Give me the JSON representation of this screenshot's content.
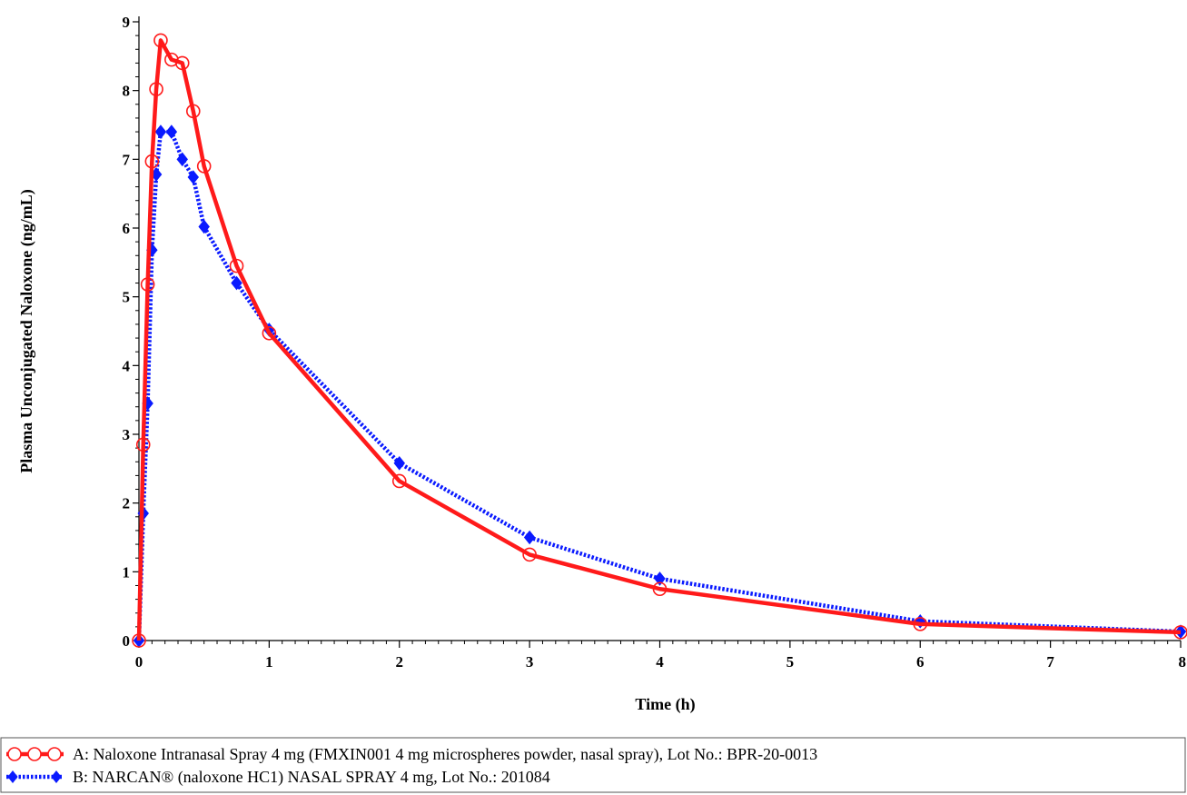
{
  "chart_data": {
    "type": "line",
    "title": "",
    "xlabel": "Time (h)",
    "ylabel": "Plasma Unconjugated Naloxone (ng/mL)",
    "xlim": [
      0,
      8
    ],
    "ylim": [
      0,
      9
    ],
    "x_ticks": [
      "0",
      "1",
      "2",
      "3",
      "4",
      "5",
      "6",
      "7",
      "8"
    ],
    "y_ticks": [
      "0",
      "1",
      "2",
      "3",
      "4",
      "5",
      "6",
      "7",
      "8",
      "9"
    ],
    "grid": false,
    "legend_position": "bottom",
    "series": [
      {
        "name": "A: Naloxone Intranasal Spray 4 mg (FMXIN001 4 mg microspheres powder, nasal spray), Lot No.: BPR-20-0013",
        "color": "#ff1a1a",
        "marker": "open-circle",
        "line_style": "solid",
        "x": [
          0,
          0.033,
          0.067,
          0.1,
          0.133,
          0.167,
          0.25,
          0.333,
          0.417,
          0.5,
          0.75,
          1,
          2,
          3,
          4,
          6,
          8
        ],
        "y": [
          0,
          2.85,
          5.18,
          6.97,
          8.02,
          8.73,
          8.45,
          8.4,
          7.7,
          6.9,
          5.45,
          4.47,
          2.32,
          1.25,
          0.75,
          0.24,
          0.12
        ]
      },
      {
        "name": "B: NARCAN® (naloxone HC1) NASAL SPRAY 4 mg, Lot No.: 201084",
        "color": "#0a1aff",
        "marker": "filled-diamond",
        "line_style": "dotted",
        "x": [
          0,
          0.033,
          0.067,
          0.1,
          0.133,
          0.167,
          0.25,
          0.333,
          0.417,
          0.5,
          0.75,
          1,
          2,
          3,
          4,
          6,
          8
        ],
        "y": [
          0,
          1.85,
          3.45,
          5.68,
          6.78,
          7.4,
          7.4,
          7.0,
          6.74,
          6.02,
          5.2,
          4.52,
          2.58,
          1.5,
          0.9,
          0.28,
          0.13
        ]
      }
    ]
  }
}
